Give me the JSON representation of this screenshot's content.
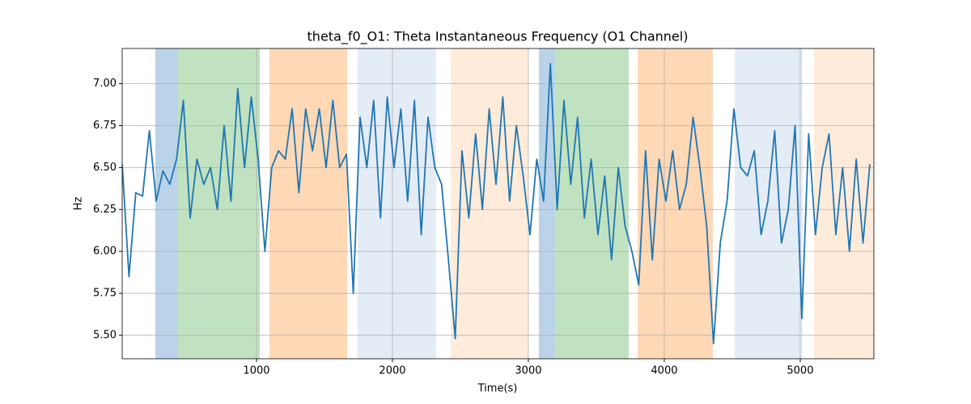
{
  "chart_data": {
    "type": "line",
    "title": "theta_f0_O1: Theta Instantaneous Frequency (O1 Channel)",
    "x_label": "Time(s)",
    "y_label": "Hz",
    "x": [
      12,
      62,
      112,
      162,
      212,
      262,
      312,
      362,
      412,
      462,
      512,
      562,
      612,
      662,
      712,
      762,
      812,
      862,
      912,
      962,
      1012,
      1062,
      1112,
      1162,
      1212,
      1262,
      1312,
      1362,
      1412,
      1462,
      1512,
      1562,
      1612,
      1662,
      1712,
      1762,
      1812,
      1862,
      1912,
      1962,
      2012,
      2062,
      2112,
      2162,
      2212,
      2262,
      2312,
      2362,
      2412,
      2462,
      2512,
      2562,
      2612,
      2662,
      2712,
      2762,
      2812,
      2862,
      2912,
      2962,
      3012,
      3062,
      3112,
      3162,
      3212,
      3262,
      3312,
      3362,
      3412,
      3462,
      3512,
      3562,
      3612,
      3662,
      3712,
      3762,
      3812,
      3862,
      3912,
      3962,
      4012,
      4062,
      4112,
      4162,
      4212,
      4262,
      4312,
      4362,
      4412,
      4462,
      4512,
      4562,
      4612,
      4662,
      4712,
      4762,
      4812,
      4862,
      4912,
      4962,
      5012,
      5062,
      5112,
      5162,
      5212,
      5262,
      5312,
      5362,
      5412,
      5462,
      5512
    ],
    "series": [
      {
        "name": "theta_f0_O1",
        "color": "#1f77b4",
        "values": [
          6.52,
          5.85,
          6.35,
          6.33,
          6.72,
          6.3,
          6.48,
          6.4,
          6.55,
          6.9,
          6.2,
          6.55,
          6.4,
          6.5,
          6.25,
          6.75,
          6.3,
          6.97,
          6.5,
          6.92,
          6.55,
          6.0,
          6.5,
          6.6,
          6.55,
          6.85,
          6.35,
          6.85,
          6.6,
          6.85,
          6.5,
          6.9,
          6.5,
          6.58,
          5.75,
          6.8,
          6.5,
          6.9,
          6.2,
          6.92,
          6.5,
          6.85,
          6.3,
          6.9,
          6.1,
          6.8,
          6.5,
          6.4,
          5.95,
          5.48,
          6.6,
          6.2,
          6.7,
          6.25,
          6.85,
          6.4,
          6.92,
          6.3,
          6.75,
          6.45,
          6.1,
          6.55,
          6.3,
          7.12,
          6.25,
          6.9,
          6.4,
          6.8,
          6.2,
          6.55,
          6.1,
          6.45,
          5.95,
          6.5,
          6.15,
          6.0,
          5.8,
          6.6,
          5.95,
          6.55,
          6.3,
          6.6,
          6.25,
          6.4,
          6.8,
          6.5,
          6.15,
          5.45,
          6.05,
          6.3,
          6.85,
          6.5,
          6.45,
          6.6,
          6.1,
          6.3,
          6.72,
          6.05,
          6.25,
          6.75,
          5.6,
          6.7,
          6.1,
          6.5,
          6.7,
          6.1,
          6.5,
          6.0,
          6.55,
          6.05,
          6.52
        ]
      }
    ],
    "spans": [
      {
        "start": 256,
        "end": 423,
        "color": "#bad3e8"
      },
      {
        "start": 423,
        "end": 1024,
        "color": "#c0e2c0"
      },
      {
        "start": 1095,
        "end": 1667,
        "color": "#ffd8b6"
      },
      {
        "start": 1744,
        "end": 2322,
        "color": "#e4ecf6"
      },
      {
        "start": 2429,
        "end": 3000,
        "color": "#ffebda"
      },
      {
        "start": 3077,
        "end": 3196,
        "color": "#bad3e8"
      },
      {
        "start": 3196,
        "end": 3738,
        "color": "#c0e2c0"
      },
      {
        "start": 3804,
        "end": 4357,
        "color": "#ffd8b6"
      },
      {
        "start": 4518,
        "end": 5018,
        "color": "#e4ecf6"
      },
      {
        "start": 5101,
        "end": 5542,
        "color": "#ffebda"
      }
    ],
    "xlim": [
      12,
      5542
    ],
    "ylim": [
      5.36,
      7.21
    ],
    "xticks": [
      1000,
      2000,
      3000,
      4000,
      5000
    ],
    "yticks": [
      {
        "value": 5.5,
        "label": "5.50"
      },
      5.75,
      {
        "value": 6.0,
        "label": "6.00"
      },
      6.25,
      {
        "value": 6.5,
        "label": "6.50"
      },
      6.75,
      {
        "value": 7.0,
        "label": "7.00"
      }
    ],
    "grid": true
  }
}
